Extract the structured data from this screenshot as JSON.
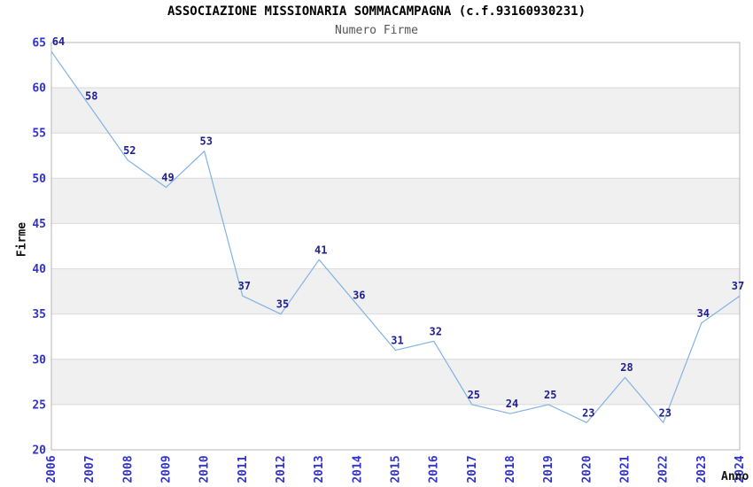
{
  "chart_data": {
    "type": "line",
    "title": "ASSOCIAZIONE MISSIONARIA SOMMACAMPAGNA (c.f.93160930231)",
    "subtitle": "Numero Firme",
    "xlabel": "Anno",
    "ylabel": "Firme",
    "x": [
      "2006",
      "2007",
      "2008",
      "2009",
      "2010",
      "2011",
      "2012",
      "2013",
      "2014",
      "2015",
      "2016",
      "2017",
      "2018",
      "2019",
      "2020",
      "2021",
      "2022",
      "2023",
      "2024"
    ],
    "series": [
      {
        "name": "Numero Firme",
        "values": [
          64,
          58,
          52,
          49,
          53,
          37,
          35,
          41,
          36,
          31,
          32,
          25,
          24,
          25,
          23,
          28,
          23,
          34,
          37
        ]
      }
    ],
    "point_labels": true,
    "markers": false,
    "legend": "none",
    "grid": true,
    "alternating_bands": true,
    "ylim": [
      20,
      65
    ],
    "ytick_step": 5,
    "colors": {
      "line": "#80b2e6",
      "point_label": "#1f1f8e",
      "tick_label": "#3232d2",
      "band": "#f0f0f0",
      "grid": "#d9d9d9",
      "border": "#b5b5b5",
      "title": "#000000",
      "subtitle": "#555555",
      "axis_label": "#111111"
    }
  }
}
